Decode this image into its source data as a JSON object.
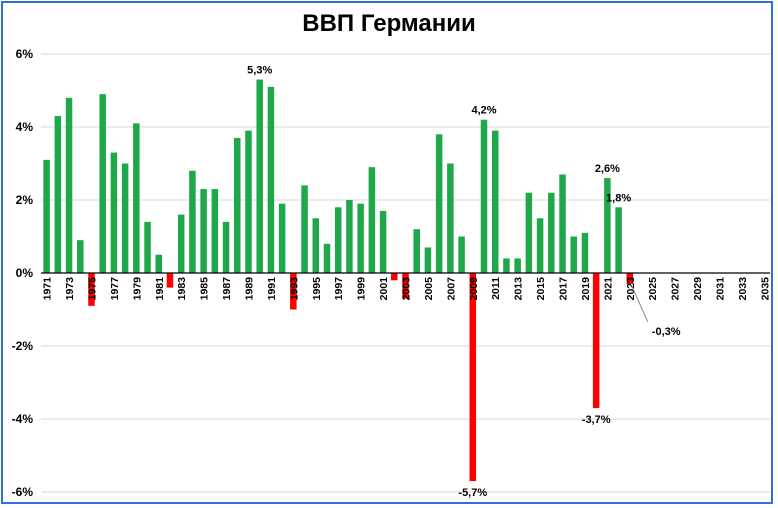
{
  "chart_data": {
    "type": "bar",
    "title": "ВВП Германии",
    "ylim": [
      -6,
      6
    ],
    "y_ticks": [
      "6%",
      "4%",
      "2%",
      "0%",
      "-2%",
      "-4%",
      "-6%"
    ],
    "y_tick_values": [
      6,
      4,
      2,
      0,
      -2,
      -4,
      -6
    ],
    "grid": true,
    "colors": {
      "positive": "#1fa84a",
      "negative": "#ff0000",
      "grid": "#d9d9d9",
      "axis": "#000000",
      "frame": "#2f6fd6"
    },
    "categories": [
      1971,
      1972,
      1973,
      1974,
      1975,
      1976,
      1977,
      1978,
      1979,
      1980,
      1981,
      1982,
      1983,
      1984,
      1985,
      1986,
      1987,
      1988,
      1989,
      1990,
      1991,
      1992,
      1993,
      1994,
      1995,
      1996,
      1997,
      1998,
      1999,
      2000,
      2001,
      2002,
      2003,
      2004,
      2005,
      2006,
      2007,
      2008,
      2009,
      2010,
      2011,
      2012,
      2013,
      2014,
      2015,
      2016,
      2017,
      2018,
      2019,
      2020,
      2021,
      2022,
      2023,
      2024,
      2025,
      2026,
      2027,
      2028,
      2029,
      2030,
      2031,
      2032,
      2033,
      2034,
      2035
    ],
    "tick_labels": [
      "1971",
      "",
      "1973",
      "",
      "1975",
      "",
      "1977",
      "",
      "1979",
      "",
      "1981",
      "",
      "1983",
      "",
      "1985",
      "",
      "1987",
      "",
      "1989",
      "",
      "1991",
      "",
      "1993",
      "",
      "1995",
      "",
      "1997",
      "",
      "1999",
      "",
      "2001",
      "",
      "2003",
      "",
      "2005",
      "",
      "2007",
      "",
      "2009",
      "",
      "2011",
      "",
      "2013",
      "",
      "2015",
      "",
      "2017",
      "",
      "2019",
      "",
      "2021",
      "",
      "2023",
      "",
      "2025",
      "",
      "2027",
      "",
      "2029",
      "",
      "2031",
      "",
      "2033",
      "",
      "2035"
    ],
    "values": [
      3.1,
      4.3,
      4.8,
      0.9,
      -0.9,
      4.9,
      3.3,
      3.0,
      4.1,
      1.4,
      0.5,
      -0.4,
      1.6,
      2.8,
      2.3,
      2.3,
      1.4,
      3.7,
      3.9,
      5.3,
      5.1,
      1.9,
      -1.0,
      2.4,
      1.5,
      0.8,
      1.8,
      2.0,
      1.9,
      2.9,
      1.7,
      -0.2,
      -0.7,
      1.2,
      0.7,
      3.8,
      3.0,
      1.0,
      -5.7,
      4.2,
      3.9,
      0.4,
      0.4,
      2.2,
      1.5,
      2.2,
      2.7,
      1.0,
      1.1,
      -3.7,
      2.6,
      1.8,
      -0.3,
      null,
      null,
      null,
      null,
      null,
      null,
      null,
      null,
      null,
      null,
      null,
      null
    ],
    "annotations": [
      {
        "category": 1990,
        "text": "5,3%"
      },
      {
        "category": 2010,
        "text": "4,2%"
      },
      {
        "category": 2021,
        "text": "2,6%"
      },
      {
        "category": 2022,
        "text": "1,8%"
      },
      {
        "category": 2009,
        "text": "-5,7%"
      },
      {
        "category": 2020,
        "text": "-3,7%"
      },
      {
        "category": 2023,
        "text": "-0,3%"
      }
    ]
  }
}
